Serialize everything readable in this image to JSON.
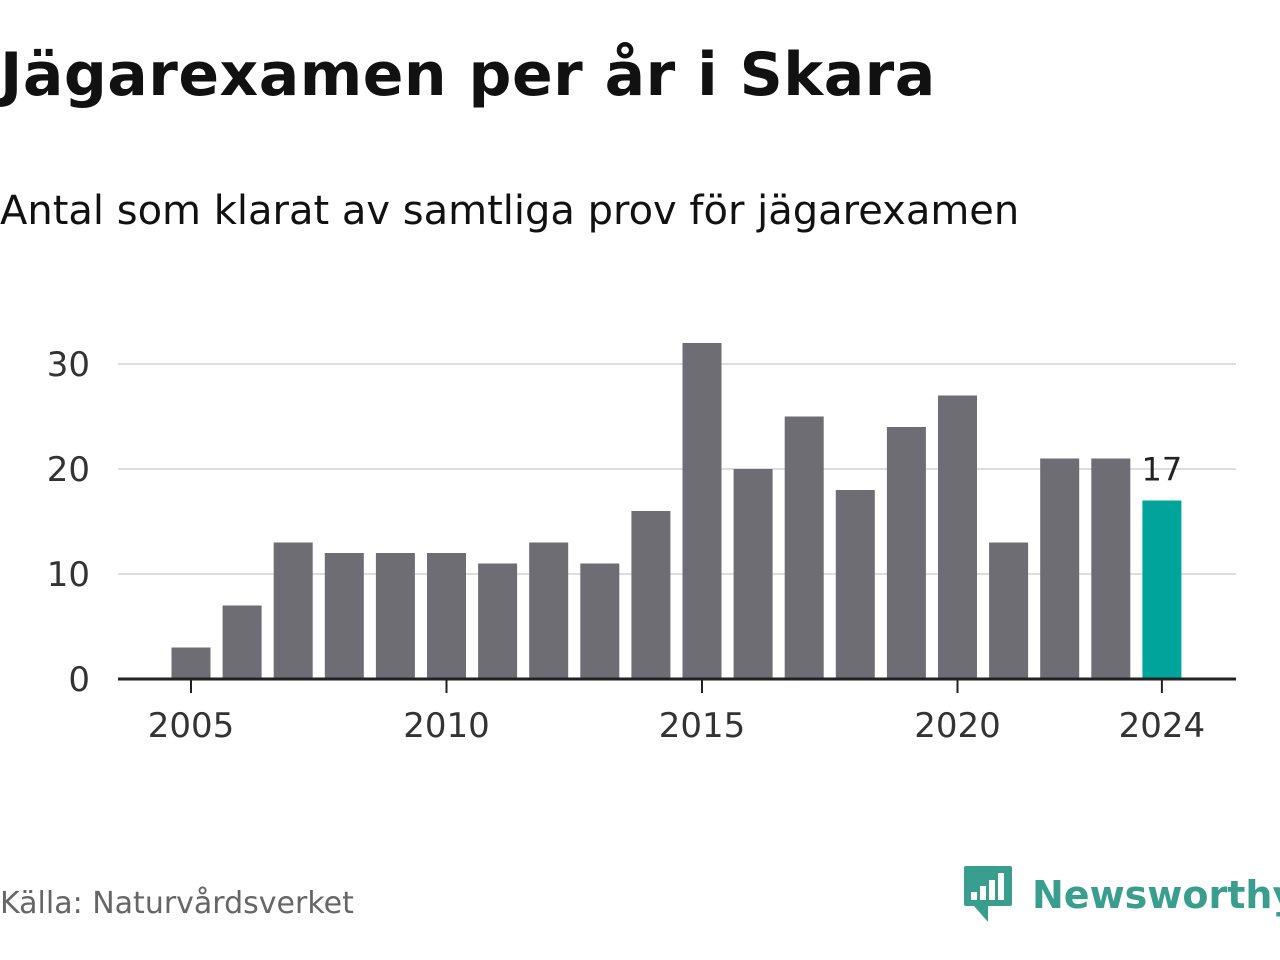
{
  "title": "Jägarexamen per år i Skara",
  "subtitle": "Antal som klarat av samtliga prov för jägarexamen",
  "source": "Källa: Naturvårdsverket",
  "logo": {
    "name": "Newsworthy",
    "icon": "newsworthy-logo-icon",
    "color": "#3a9e8f"
  },
  "chart_data": {
    "type": "bar",
    "x": [
      2005,
      2006,
      2007,
      2008,
      2009,
      2010,
      2011,
      2012,
      2013,
      2014,
      2015,
      2016,
      2017,
      2018,
      2019,
      2020,
      2021,
      2022,
      2023,
      2024
    ],
    "values": [
      3,
      7,
      13,
      12,
      12,
      12,
      11,
      13,
      11,
      16,
      32,
      20,
      25,
      18,
      24,
      27,
      13,
      21,
      21,
      17
    ],
    "ylim": [
      0,
      33
    ],
    "yticks": [
      "0",
      "10",
      "20",
      "30"
    ],
    "xticks": [
      "2005",
      "2010",
      "2015",
      "2020",
      "2024"
    ],
    "xtick_years": [
      2005,
      2010,
      2015,
      2020,
      2024
    ],
    "highlight": {
      "year": 2024,
      "label": "17"
    },
    "colors": {
      "bar": "#6e6d73",
      "highlight": "#00a49a",
      "grid": "#dddddd",
      "axis": "#222222"
    },
    "grid": true
  }
}
